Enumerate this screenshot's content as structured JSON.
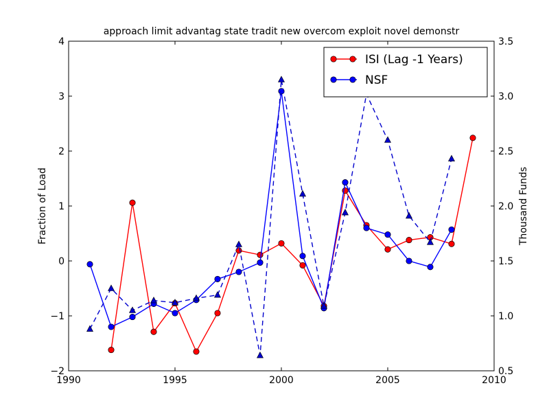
{
  "chart_data": {
    "type": "line",
    "title": "approach limit advantag state tradit new overcom exploit novel demonstr",
    "ylabel": "Fraction of Load",
    "y2label": "Thousand Funds",
    "xlim": [
      1990,
      2010
    ],
    "ylim": [
      -2,
      4
    ],
    "y2lim": [
      0.5,
      3.5
    ],
    "xticks": [
      "1990",
      "1995",
      "2000",
      "2005",
      "2010"
    ],
    "yticks": [
      "−2",
      "−1",
      "0",
      "1",
      "2",
      "3",
      "4"
    ],
    "y2ticks": [
      "0.5",
      "1.0",
      "1.5",
      "2.0",
      "2.5",
      "3.0",
      "3.5"
    ],
    "grid": false,
    "legend_position": "top-right",
    "series": [
      {
        "name": "ISI (Lag -1 Years)",
        "axis": "left",
        "color": "#ff0000",
        "marker": "circle",
        "linestyle": "solid",
        "x": [
          1992,
          1993,
          1994,
          1995,
          1996,
          1997,
          1998,
          1999,
          2000,
          2001,
          2002,
          2003,
          2004,
          2005,
          2006,
          2007,
          2008,
          2009
        ],
        "y": [
          -1.62,
          1.06,
          -1.29,
          -0.77,
          -1.65,
          -0.95,
          0.19,
          0.11,
          0.32,
          -0.08,
          -0.82,
          1.28,
          0.65,
          0.21,
          0.38,
          0.43,
          0.31,
          2.24
        ]
      },
      {
        "name": "NSF",
        "axis": "left",
        "color": "#0000ff",
        "marker": "circle",
        "linestyle": "solid",
        "x": [
          1991,
          1992,
          1993,
          1994,
          1995,
          1996,
          1997,
          1998,
          1999,
          2000,
          2001,
          2002,
          2003,
          2004,
          2005,
          2006,
          2007,
          2008
        ],
        "y": [
          -0.06,
          -1.2,
          -1.02,
          -0.78,
          -0.95,
          -0.71,
          -0.33,
          -0.2,
          -0.03,
          3.09,
          0.09,
          -0.86,
          1.43,
          0.6,
          0.48,
          0.0,
          -0.11,
          0.57
        ]
      },
      {
        "axis": "right",
        "color": "#0000cc",
        "marker": "triangle",
        "linestyle": "dashed",
        "x": [
          1991,
          1992,
          1993,
          1994,
          1995,
          1996,
          1997,
          1998,
          1999,
          2000,
          2001,
          2002,
          2003,
          2004,
          2005,
          2006,
          2007,
          2008
        ],
        "y": [
          0.88,
          1.25,
          1.05,
          1.14,
          1.12,
          1.16,
          1.19,
          1.65,
          0.64,
          3.15,
          2.11,
          1.09,
          1.94,
          3.02,
          2.6,
          1.91,
          1.67,
          2.43
        ]
      }
    ]
  }
}
